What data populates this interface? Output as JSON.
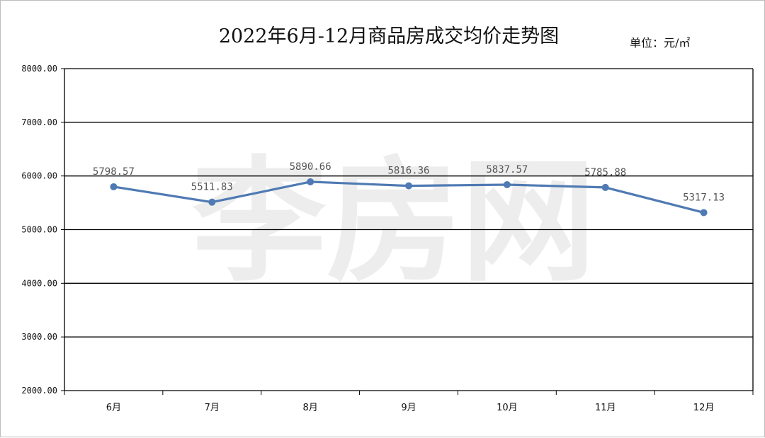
{
  "chart_data": {
    "type": "line",
    "title": "2022年6月-12月商品房成交均价走势图",
    "unit_label": "单位：元/㎡",
    "watermark": "李房网",
    "categories": [
      "6月",
      "7月",
      "8月",
      "9月",
      "10月",
      "11月",
      "12月"
    ],
    "series": [
      {
        "values": [
          5798.57,
          5511.83,
          5890.66,
          5816.36,
          5837.57,
          5785.88,
          5317.13
        ],
        "labels": [
          "5798.57",
          "5511.83",
          "5890.66",
          "5816.36",
          "5837.57",
          "5785.88",
          "5317.13"
        ]
      }
    ],
    "y_ticks": [
      "2000.00",
      "3000.00",
      "4000.00",
      "5000.00",
      "6000.00",
      "7000.00",
      "8000.00"
    ],
    "ylim": [
      2000,
      8000
    ],
    "grid": true,
    "legend": "none",
    "line_color": "#4f7ab3",
    "grid_color": "#000000"
  }
}
